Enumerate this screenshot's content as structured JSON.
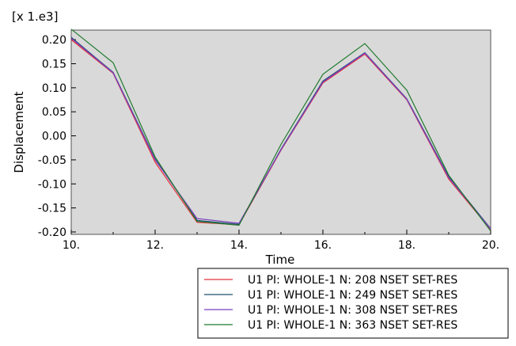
{
  "chart_data": {
    "type": "line",
    "title": "",
    "xlabel": "Time",
    "ylabel": "Displacement",
    "multiplier_label": "[x 1.e3]",
    "xlim": [
      10,
      20
    ],
    "ylim": [
      -0.205,
      0.22
    ],
    "x_ticks": [
      10,
      12,
      14,
      16,
      18,
      20
    ],
    "x_tick_labels": [
      "10.",
      "12.",
      "14.",
      "16.",
      "18.",
      "20."
    ],
    "y_ticks": [
      -0.2,
      -0.15,
      -0.1,
      -0.05,
      0.0,
      0.05,
      0.1,
      0.15,
      0.2
    ],
    "y_tick_labels": [
      "-0.20",
      "-0.15",
      "-0.10",
      "-0.05",
      "0.00",
      "0.05",
      "0.10",
      "0.15",
      "0.20"
    ],
    "grid": false,
    "plot_background": "#d9d9d9",
    "legend_position": "bottom-right, below plot",
    "x": [
      10,
      11,
      12,
      13,
      14,
      15,
      16,
      17,
      18,
      19,
      20
    ],
    "series": [
      {
        "name": "U1 PI: WHOLE-1 N: 208 NSET SET-RES",
        "color": "#e8323c",
        "values": [
          0.2,
          0.13,
          -0.055,
          -0.18,
          -0.185,
          -0.03,
          0.11,
          0.17,
          0.075,
          -0.09,
          -0.195
        ]
      },
      {
        "name": "U1 PI: WHOLE-1 N: 249 NSET SET-RES",
        "color": "#1f4f6e",
        "values": [
          0.205,
          0.132,
          -0.048,
          -0.176,
          -0.184,
          -0.028,
          0.114,
          0.173,
          0.077,
          -0.085,
          -0.193
        ]
      },
      {
        "name": "U1 PI: WHOLE-1 N: 308 NSET SET-RES",
        "color": "#7b3fbf",
        "values": [
          0.203,
          0.131,
          -0.05,
          -0.172,
          -0.182,
          -0.029,
          0.112,
          0.172,
          0.076,
          -0.087,
          -0.194
        ]
      },
      {
        "name": "U1 PI: WHOLE-1 N: 363 NSET SET-RES",
        "color": "#1f7a2e",
        "values": [
          0.222,
          0.152,
          -0.044,
          -0.178,
          -0.186,
          -0.018,
          0.128,
          0.192,
          0.095,
          -0.082,
          -0.198
        ]
      }
    ]
  }
}
